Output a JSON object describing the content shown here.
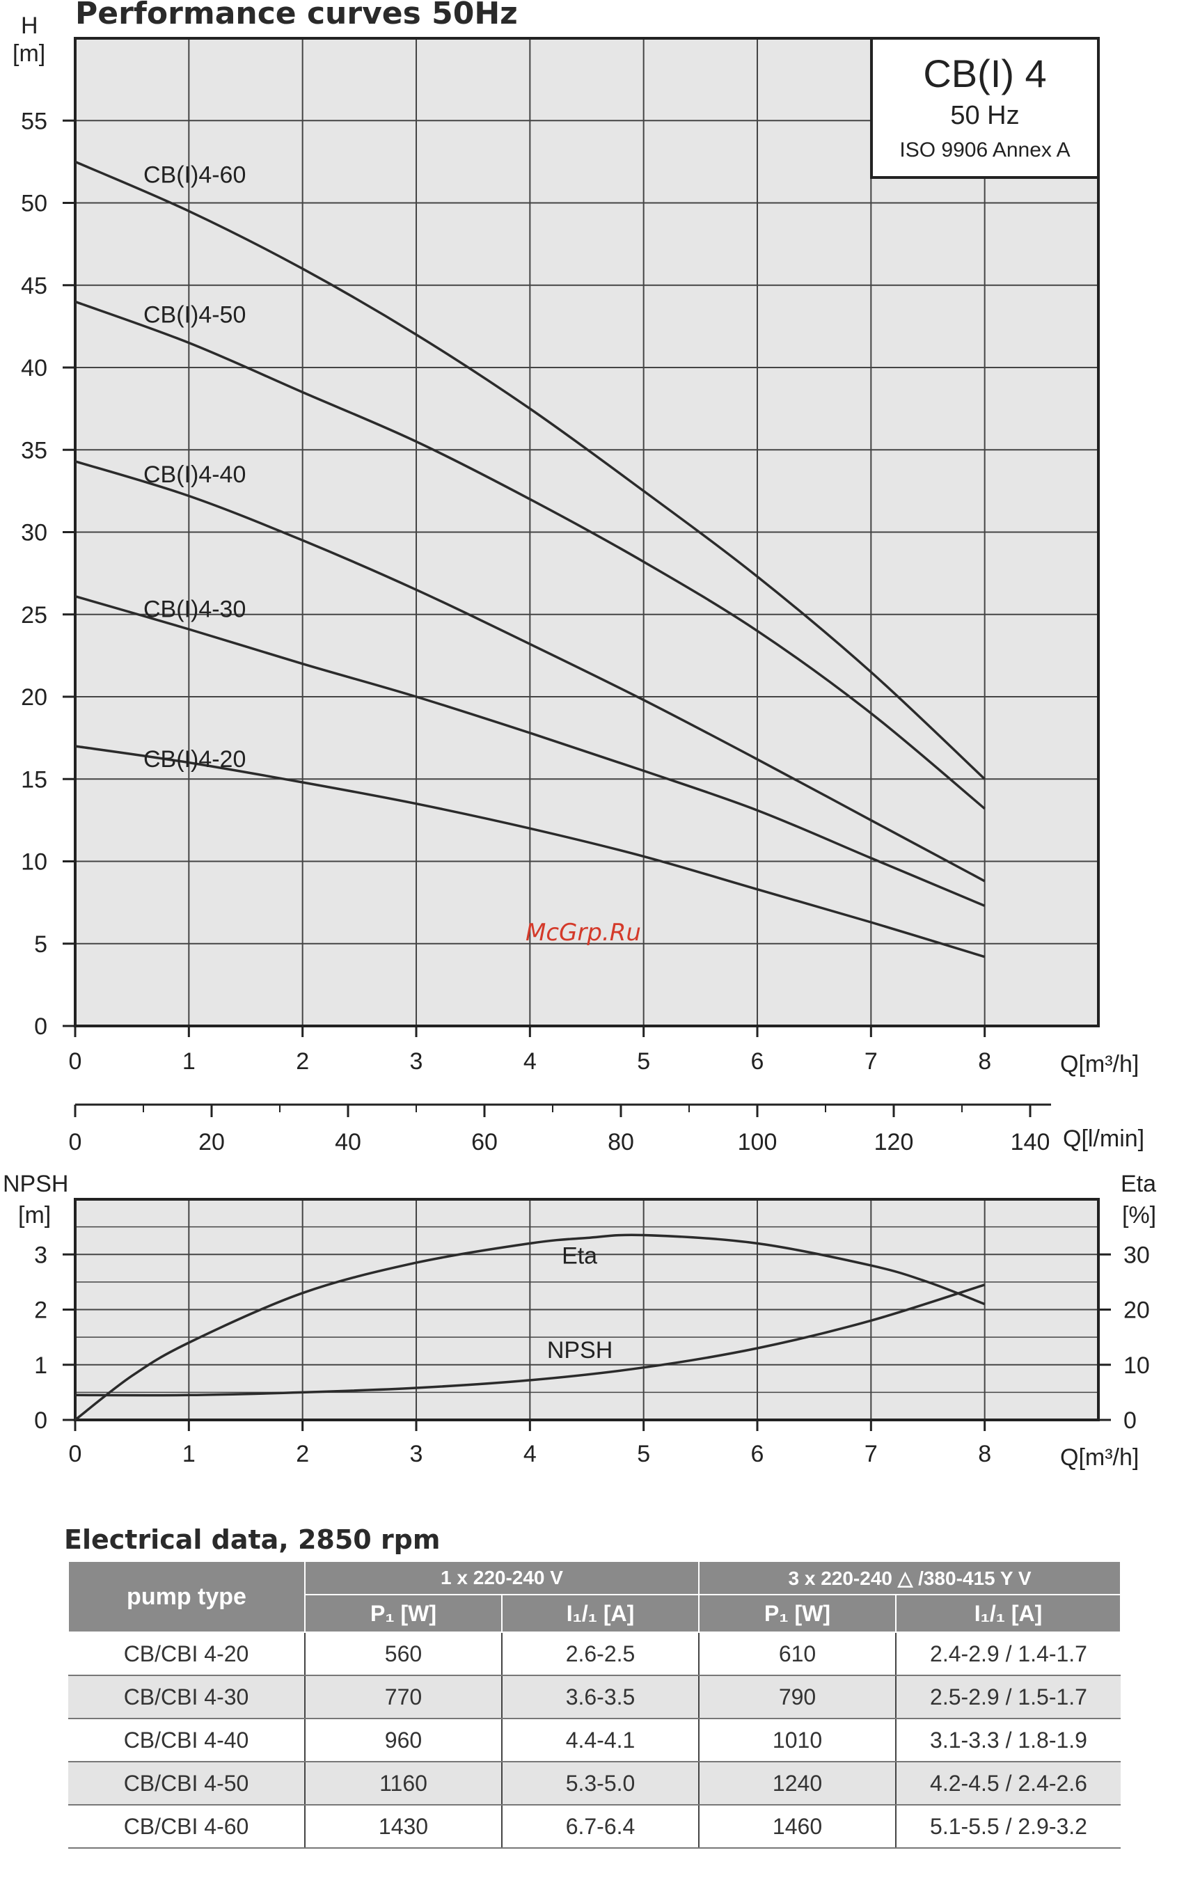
{
  "chart_data": [
    {
      "type": "line",
      "title": "Performance curves 50Hz",
      "ylabel_line1": "H",
      "ylabel_line2": "[m]",
      "xlabel": "Q[m³/h]",
      "x2label": "Q[l/min]",
      "xlim": [
        0,
        9
      ],
      "ylim": [
        0,
        60
      ],
      "x_ticks": [
        0,
        1,
        2,
        3,
        4,
        5,
        6,
        7,
        8
      ],
      "y_ticks": [
        0,
        5,
        10,
        15,
        20,
        25,
        30,
        35,
        40,
        45,
        50,
        55
      ],
      "x2_ticks": [
        0,
        20,
        40,
        60,
        80,
        100,
        120,
        140
      ],
      "grid": true,
      "legend_box": {
        "line1": "CB(I) 4",
        "line2": "50 Hz",
        "line3": "ISO 9906 Annex A"
      },
      "series": [
        {
          "name": "CB(I)4-60",
          "x": [
            0,
            1,
            2,
            3,
            4,
            5,
            6,
            7,
            8
          ],
          "y": [
            52.5,
            49.5,
            46,
            42,
            37.5,
            32.5,
            27.3,
            21.5,
            15
          ]
        },
        {
          "name": "CB(I)4-50",
          "x": [
            0,
            1,
            2,
            3,
            4,
            5,
            6,
            7,
            8
          ],
          "y": [
            44,
            41.5,
            38.5,
            35.5,
            32,
            28.2,
            24,
            19,
            13.2
          ]
        },
        {
          "name": "CB(I)4-40",
          "x": [
            0,
            1,
            2,
            3,
            4,
            5,
            6,
            7,
            8
          ],
          "y": [
            34.3,
            32.2,
            29.5,
            26.5,
            23.2,
            19.8,
            16.2,
            12.5,
            8.8
          ]
        },
        {
          "name": "CB(I)4-30",
          "x": [
            0,
            1,
            2,
            3,
            4,
            5,
            6,
            7,
            8
          ],
          "y": [
            26.1,
            24.1,
            22,
            20,
            17.8,
            15.5,
            13.1,
            10.2,
            7.3
          ]
        },
        {
          "name": "CB(I)4-20",
          "x": [
            0,
            1,
            2,
            3,
            4,
            5,
            6,
            7,
            8
          ],
          "y": [
            17,
            16,
            14.8,
            13.5,
            12,
            10.3,
            8.3,
            6.3,
            4.2
          ]
        }
      ]
    },
    {
      "type": "line",
      "ylabel_left_line1": "NPSH",
      "ylabel_left_line2": "[m]",
      "ylabel_right_line1": "Eta",
      "ylabel_right_line2": "[%]",
      "xlabel": "Q[m³/h]",
      "xlim": [
        0,
        9
      ],
      "ylim_left": [
        0,
        4
      ],
      "ylim_right": [
        0,
        40
      ],
      "x_ticks": [
        0,
        1,
        2,
        3,
        4,
        5,
        6,
        7,
        8
      ],
      "y_ticks_left": [
        0,
        1,
        2,
        3
      ],
      "y_ticks_right": [
        0,
        10,
        20,
        30
      ],
      "grid": true,
      "series": [
        {
          "name": "Eta",
          "axis": "right",
          "x": [
            0,
            0.5,
            1,
            2,
            3,
            4,
            4.5,
            5,
            6,
            7,
            7.5,
            8
          ],
          "y": [
            0,
            8,
            14,
            23,
            28.5,
            32,
            33,
            33.5,
            32,
            28,
            25,
            21
          ]
        },
        {
          "name": "NPSH",
          "axis": "left",
          "x": [
            0,
            1,
            2,
            3,
            4,
            5,
            6,
            7,
            8
          ],
          "y": [
            0.45,
            0.45,
            0.5,
            0.58,
            0.72,
            0.95,
            1.3,
            1.8,
            2.45
          ]
        }
      ]
    }
  ],
  "watermark": "McGrp.Ru",
  "electrical": {
    "title": "Electrical data, 2850 rpm",
    "pump_type_header": "pump type",
    "group1": "1 x 220-240 V",
    "group2": "3 x 220-240 △ /380-415 Y V",
    "p1_header": "P₁ [W]",
    "i_header": "I₁/₁ [A]",
    "rows": [
      {
        "type": "CB/CBI 4-20",
        "p1_1ph": "560",
        "i_1ph": "2.6-2.5",
        "p1_3ph": "610",
        "i_3ph": "2.4-2.9 / 1.4-1.7"
      },
      {
        "type": "CB/CBI 4-30",
        "p1_1ph": "770",
        "i_1ph": "3.6-3.5",
        "p1_3ph": "790",
        "i_3ph": "2.5-2.9 / 1.5-1.7"
      },
      {
        "type": "CB/CBI 4-40",
        "p1_1ph": "960",
        "i_1ph": "4.4-4.1",
        "p1_3ph": "1010",
        "i_3ph": "3.1-3.3 / 1.8-1.9"
      },
      {
        "type": "CB/CBI 4-50",
        "p1_1ph": "1160",
        "i_1ph": "5.3-5.0",
        "p1_3ph": "1240",
        "i_3ph": "4.2-4.5 / 2.4-2.6"
      },
      {
        "type": "CB/CBI 4-60",
        "p1_1ph": "1430",
        "i_1ph": "6.7-6.4",
        "p1_3ph": "1460",
        "i_3ph": "5.1-5.5 / 2.9-3.2"
      }
    ]
  }
}
